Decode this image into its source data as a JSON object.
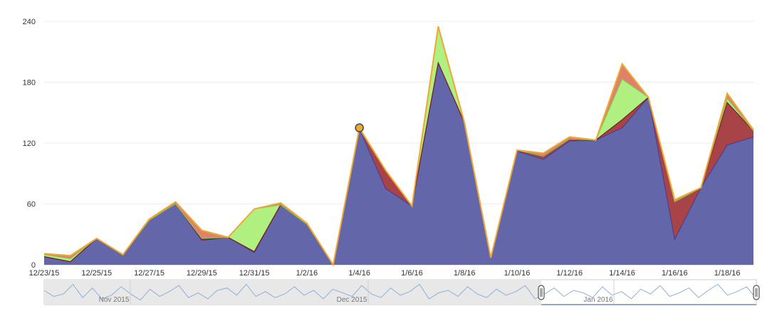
{
  "chart_data": {
    "type": "area",
    "stacked": true,
    "title": "",
    "xlabel": "",
    "ylabel": "",
    "ylim": [
      0,
      240
    ],
    "yticks": [
      0,
      60,
      120,
      180,
      240
    ],
    "grid": true,
    "x": [
      "12/23/15",
      "12/24/15",
      "12/25/15",
      "12/26/15",
      "12/27/15",
      "12/28/15",
      "12/29/15",
      "12/30/15",
      "12/31/15",
      "1/1/16",
      "1/2/16",
      "1/3/16",
      "1/4/16",
      "1/5/16",
      "1/6/16",
      "1/7/16",
      "1/8/16",
      "1/9/16",
      "1/10/16",
      "1/11/16",
      "1/12/16",
      "1/13/16",
      "1/14/16",
      "1/15/16",
      "1/16/16",
      "1/17/16",
      "1/18/16",
      "1/19/16"
    ],
    "x_tick_labels": [
      "12/23/15",
      "12/25/15",
      "12/27/15",
      "12/29/15",
      "12/31/15",
      "1/2/16",
      "1/4/16",
      "1/6/16",
      "1/8/16",
      "1/10/16",
      "1/12/16",
      "1/14/16",
      "1/16/16",
      "1/18/16"
    ],
    "series": [
      {
        "color": "#6466aa",
        "values": [
          8,
          3,
          26,
          10,
          44,
          60,
          24,
          27,
          12,
          59,
          40,
          0,
          134,
          75,
          58,
          199,
          140,
          7,
          112,
          104,
          122,
          123,
          135,
          165,
          25,
          76,
          118,
          126
        ]
      },
      {
        "color": "#a84347",
        "values": [
          0,
          0,
          0,
          0,
          0,
          0,
          1,
          0,
          1,
          0,
          0,
          0,
          0,
          18,
          0,
          0,
          0,
          0,
          1,
          3,
          2,
          0,
          8,
          0,
          37,
          0,
          42,
          6
        ]
      },
      {
        "color": "#b0f080",
        "values": [
          2,
          3,
          0,
          0,
          0,
          0,
          1,
          0,
          42,
          0,
          0,
          0,
          0,
          0,
          0,
          35,
          0,
          0,
          0,
          0,
          0,
          0,
          40,
          0,
          0,
          0,
          4,
          0
        ]
      },
      {
        "color": "#e0826a",
        "values": [
          1,
          3,
          0,
          0,
          1,
          2,
          8,
          0,
          0,
          2,
          1,
          0,
          1,
          0,
          0,
          1,
          0,
          0,
          0,
          3,
          2,
          0,
          15,
          0,
          2,
          0,
          5,
          1
        ]
      }
    ],
    "outline_color": "#f0a832",
    "highlight_point": {
      "x": "1/4/16",
      "y": 135
    },
    "navigator": {
      "labels": [
        "Nov 2015",
        "Dec 2015",
        "Jan 2016"
      ]
    }
  }
}
